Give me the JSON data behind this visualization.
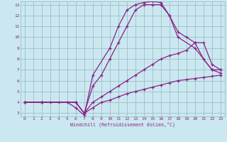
{
  "xlabel": "Windchill (Refroidissement éolien,°C)",
  "bg_color": "#cbe8f0",
  "grid_color": "#9bbfc8",
  "line_color": "#882288",
  "xlim": [
    -0.5,
    23.5
  ],
  "ylim": [
    2.7,
    13.3
  ],
  "xticks": [
    0,
    1,
    2,
    3,
    4,
    5,
    6,
    7,
    8,
    9,
    10,
    11,
    12,
    13,
    14,
    15,
    16,
    17,
    18,
    19,
    20,
    21,
    22,
    23
  ],
  "yticks": [
    3,
    4,
    5,
    6,
    7,
    8,
    9,
    10,
    11,
    12,
    13
  ],
  "series": [
    {
      "x": [
        0,
        2,
        6,
        7,
        8,
        9,
        10,
        11,
        12,
        13,
        14,
        15,
        16,
        17,
        18,
        19,
        20,
        21,
        22,
        23
      ],
      "y": [
        4,
        4,
        4,
        3,
        3.5,
        4,
        4.2,
        4.5,
        4.8,
        5,
        5.2,
        5.4,
        5.6,
        5.8,
        6.0,
        6.1,
        6.2,
        6.3,
        6.4,
        6.5
      ]
    },
    {
      "x": [
        0,
        2,
        6,
        7,
        8,
        9,
        10,
        11,
        12,
        13,
        14,
        15,
        16,
        17,
        18,
        19,
        20,
        21,
        22,
        23
      ],
      "y": [
        4,
        4,
        4,
        3,
        4,
        4.5,
        5,
        5.5,
        6,
        6.5,
        7,
        7.5,
        8,
        8.3,
        8.5,
        8.8,
        9.5,
        9.5,
        7.5,
        7
      ]
    },
    {
      "x": [
        0,
        2,
        6,
        7,
        8,
        9,
        10,
        11,
        12,
        13,
        14,
        15,
        16,
        17,
        18,
        19,
        20,
        21,
        22,
        23
      ],
      "y": [
        4,
        4,
        4,
        3,
        5.5,
        6.5,
        8,
        9.5,
        11,
        12.5,
        13,
        13,
        13,
        12,
        10.5,
        10,
        9.5,
        8,
        7,
        7
      ]
    },
    {
      "x": [
        0,
        2,
        3,
        4,
        5,
        6,
        7,
        8,
        10,
        11,
        12,
        13,
        14,
        15,
        16,
        17,
        18,
        20,
        22,
        23
      ],
      "y": [
        4,
        4,
        4,
        4,
        4,
        3.5,
        2.8,
        6.5,
        9,
        11,
        12.5,
        13,
        13.2,
        13.3,
        13.2,
        12,
        10,
        9,
        7,
        6.7
      ]
    }
  ]
}
